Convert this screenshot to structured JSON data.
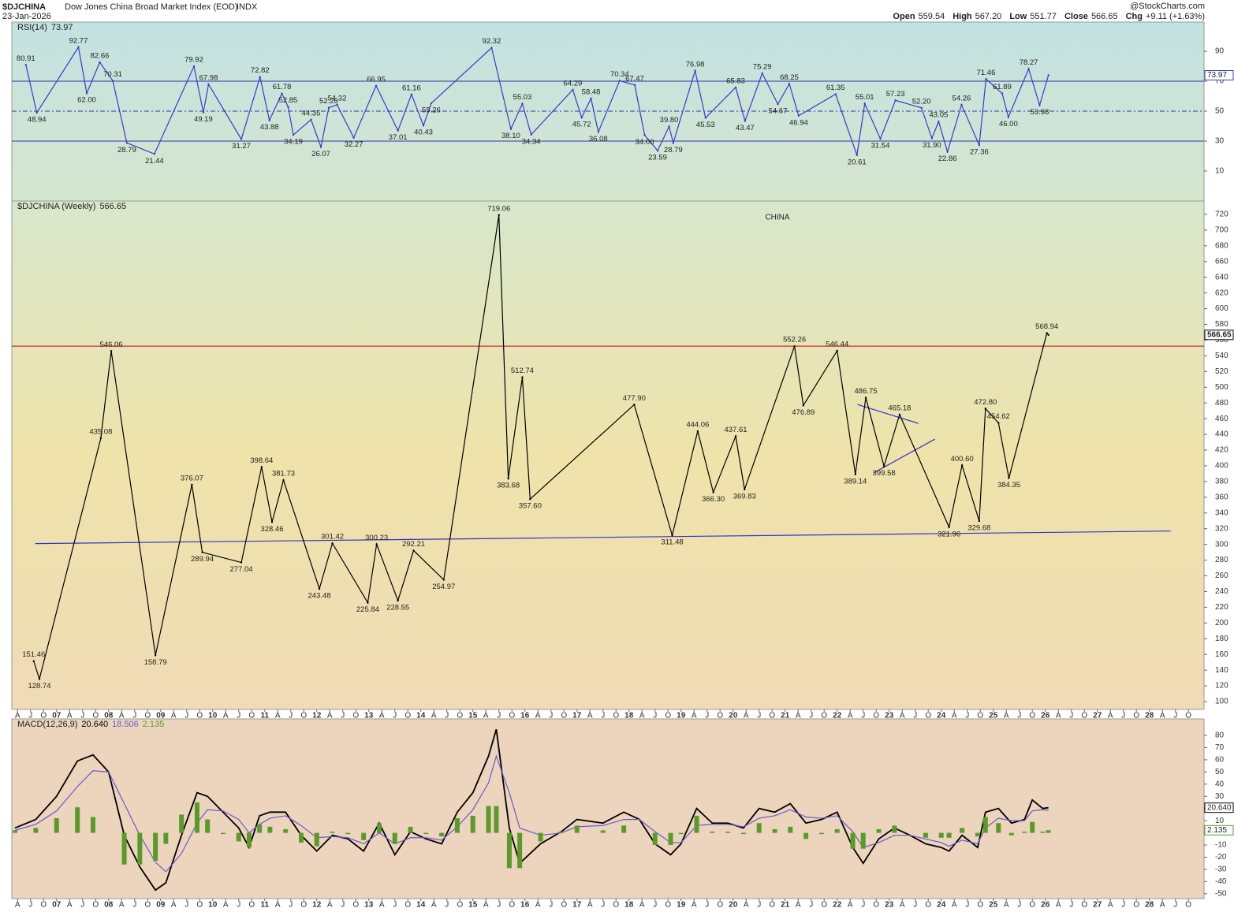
{
  "header": {
    "symbol": "$DJCHINA",
    "name": "Dow Jones China Broad Market Index (EOD)",
    "exchange": "INDX",
    "date": "23-Jan-2026",
    "credit": "@StockCharts.com",
    "quote": [
      {
        "label": "Open",
        "value": "559.54"
      },
      {
        "label": "High",
        "value": "567.20"
      },
      {
        "label": "Low",
        "value": "551.77"
      },
      {
        "label": "Close",
        "value": "566.65"
      },
      {
        "label": "Chg",
        "value": "+9.11 (+1.63%)"
      }
    ]
  },
  "chart_data": [
    {
      "type": "line",
      "title": "RSI(14)",
      "color": "#3a3ac8",
      "x": [
        2006.41,
        2006.62,
        2007.42,
        2007.58,
        2007.83,
        2008.08,
        2008.35,
        2008.88,
        2009.64,
        2009.82,
        2009.92,
        2010.55,
        2010.91,
        2011.09,
        2011.33,
        2011.45,
        2011.55,
        2011.89,
        2012.08,
        2012.23,
        2012.39,
        2012.71,
        2013.14,
        2013.56,
        2013.82,
        2014.05,
        2014.2,
        2015.36,
        2015.73,
        2015.95,
        2016.12,
        2016.92,
        2017.09,
        2017.27,
        2017.41,
        2017.82,
        2018.11,
        2018.3,
        2018.55,
        2018.77,
        2018.85,
        2019.27,
        2019.47,
        2020.05,
        2020.23,
        2020.56,
        2020.86,
        2021.08,
        2021.26,
        2021.97,
        2022.38,
        2022.53,
        2022.83,
        2023.12,
        2023.62,
        2023.82,
        2023.95,
        2024.12,
        2024.39,
        2024.73,
        2024.86,
        2025.17,
        2025.29,
        2025.68,
        2025.89,
        2026.06
      ],
      "values": [
        80.91,
        48.94,
        92.77,
        62,
        82.66,
        70.31,
        28.79,
        21.44,
        79.92,
        49.19,
        67.98,
        31.27,
        72.82,
        43.88,
        61.78,
        52.85,
        34.19,
        44.35,
        26.07,
        52.26,
        54.32,
        32.27,
        66.95,
        37.01,
        61.16,
        40.43,
        55.26,
        92.32,
        38.1,
        55.03,
        34.34,
        64.29,
        45.72,
        58.48,
        36.08,
        70.34,
        67.47,
        34,
        23.59,
        39.8,
        28.79,
        76.98,
        45.53,
        65.83,
        43.47,
        75.29,
        54.67,
        68.25,
        46.94,
        61.35,
        20.61,
        55.01,
        31.54,
        57.23,
        52.2,
        31.9,
        43.05,
        22.86,
        54.26,
        27.36,
        71.46,
        61.89,
        46,
        78.27,
        53.98,
        73.97
      ],
      "value_labels": [
        "80.91",
        "48.94",
        "92.77",
        "62.00",
        "82.66",
        "70.31",
        "28.79",
        "21.44",
        "79.92",
        "49.19",
        "67.98",
        "31.27",
        "72.82",
        "43.88",
        "61.78",
        "52.85",
        "34.19",
        "44.35",
        "26.07",
        "52.26",
        "54.32",
        "32.27",
        "66.95",
        "37.01",
        "61.16",
        "40.43",
        "55.26",
        "92.32",
        "38.10",
        "55.03",
        "34.34",
        "64.29",
        "45.72",
        "58.48",
        "36.08",
        "70.34",
        "67.47",
        "34.00",
        "23.59",
        "39.80",
        "28.79",
        "76.98",
        "45.53",
        "65.83",
        "43.47",
        "75.29",
        "54.67",
        "68.25",
        "46.94",
        "61.35",
        "20.61",
        "55.01",
        "31.54",
        "57.23",
        "52.20",
        "31.90",
        "43.05",
        "22.86",
        "54.26",
        "27.36",
        "71.46",
        "61.89",
        "46.00",
        "78.27",
        "53.98",
        "73.97"
      ],
      "xlim": [
        2006.14,
        2029.05
      ],
      "ylim": [
        -10,
        109.5
      ],
      "yticks": [
        10,
        30,
        50,
        70,
        90
      ],
      "hlines": [
        {
          "value": 70,
          "color": "#3333aa"
        },
        {
          "value": 50,
          "color": "#3333aa",
          "dashed": true
        },
        {
          "value": 30,
          "color": "#3333aa"
        }
      ]
    },
    {
      "type": "line",
      "title": "$DJCHINA (Weekly)",
      "annotation": "CHINA",
      "color": "#000000",
      "x": [
        2006.56,
        2006.67,
        2007.85,
        2008.05,
        2008.9,
        2009.6,
        2009.8,
        2010.55,
        2010.94,
        2011.14,
        2011.36,
        2012.05,
        2012.3,
        2012.98,
        2013.15,
        2013.56,
        2013.86,
        2014.44,
        2015.5,
        2015.68,
        2015.95,
        2016.1,
        2018.1,
        2018.83,
        2019.32,
        2019.62,
        2020.05,
        2020.22,
        2021.18,
        2021.35,
        2022.0,
        2022.35,
        2022.55,
        2022.9,
        2023.2,
        2024.15,
        2024.4,
        2024.73,
        2024.85,
        2025.1,
        2025.3,
        2026.03,
        2026.06
      ],
      "values": [
        151.46,
        128.74,
        435.08,
        546.06,
        158.79,
        376.07,
        289.94,
        277.04,
        398.64,
        328.46,
        381.73,
        243.48,
        301.42,
        225.84,
        300.23,
        228.55,
        292.21,
        254.97,
        719.06,
        383.68,
        512.74,
        357.6,
        477.9,
        311.48,
        444.06,
        366.3,
        437.61,
        369.83,
        552.26,
        476.89,
        546.44,
        389.14,
        486.75,
        399.58,
        465.18,
        321.96,
        400.6,
        329.68,
        472.8,
        454.62,
        384.35,
        568.94,
        566.65
      ],
      "value_labels": [
        "151.46",
        "128.74",
        "435.08",
        "546.06",
        "158.79",
        "376.07",
        "289.94",
        "277.04",
        "398.64",
        "328.46",
        "381.73",
        "243.48",
        "301.42",
        "225.84",
        "300.23",
        "228.55",
        "292.21",
        "254.97",
        "719.06",
        "383.68",
        "512.74",
        "357.60",
        "477.90",
        "311.48",
        "444.06",
        "366.30",
        "437.61",
        "369.83",
        "552.26",
        "476.89",
        "546.44",
        "389.14",
        "486.75",
        "399.58",
        "465.18",
        "321.96",
        "400.60",
        "329.68",
        "472.80",
        "454.62",
        "384.35",
        "568.94",
        "566.65"
      ],
      "xlim": [
        2006.14,
        2029.05
      ],
      "ylim": [
        90,
        737
      ],
      "yticks": [
        100,
        120,
        140,
        160,
        180,
        200,
        220,
        240,
        260,
        280,
        300,
        320,
        340,
        360,
        380,
        400,
        420,
        440,
        460,
        480,
        500,
        520,
        540,
        560,
        580,
        600,
        620,
        640,
        660,
        680,
        700,
        720
      ],
      "xticks": [
        {
          "value": 2006.25,
          "label": "A"
        },
        {
          "value": 2006.5,
          "label": "J"
        },
        {
          "value": 2006.75,
          "label": "O"
        },
        {
          "value": 2007,
          "label": "07"
        },
        {
          "value": 2007.25,
          "label": "A"
        },
        {
          "value": 2007.5,
          "label": "J"
        },
        {
          "value": 2007.75,
          "label": "O"
        },
        {
          "value": 2008,
          "label": "08"
        },
        {
          "value": 2008.25,
          "label": "A"
        },
        {
          "value": 2008.5,
          "label": "J"
        },
        {
          "value": 2008.75,
          "label": "O"
        },
        {
          "value": 2009,
          "label": "09"
        },
        {
          "value": 2009.25,
          "label": "A"
        },
        {
          "value": 2009.5,
          "label": "J"
        },
        {
          "value": 2009.75,
          "label": "O"
        },
        {
          "value": 2010,
          "label": "10"
        },
        {
          "value": 2010.25,
          "label": "A"
        },
        {
          "value": 2010.5,
          "label": "J"
        },
        {
          "value": 2010.75,
          "label": "O"
        },
        {
          "value": 2011,
          "label": "11"
        },
        {
          "value": 2011.25,
          "label": "A"
        },
        {
          "value": 2011.5,
          "label": "J"
        },
        {
          "value": 2011.75,
          "label": "O"
        },
        {
          "value": 2012,
          "label": "12"
        },
        {
          "value": 2012.25,
          "label": "A"
        },
        {
          "value": 2012.5,
          "label": "J"
        },
        {
          "value": 2012.75,
          "label": "O"
        },
        {
          "value": 2013,
          "label": "13"
        },
        {
          "value": 2013.25,
          "label": "A"
        },
        {
          "value": 2013.5,
          "label": "J"
        },
        {
          "value": 2013.75,
          "label": "O"
        },
        {
          "value": 2014,
          "label": "14"
        },
        {
          "value": 2014.25,
          "label": "A"
        },
        {
          "value": 2014.5,
          "label": "J"
        },
        {
          "value": 2014.75,
          "label": "O"
        },
        {
          "value": 2015,
          "label": "15"
        },
        {
          "value": 2015.25,
          "label": "A"
        },
        {
          "value": 2015.5,
          "label": "J"
        },
        {
          "value": 2015.75,
          "label": "O"
        },
        {
          "value": 2016,
          "label": "16"
        },
        {
          "value": 2016.25,
          "label": "A"
        },
        {
          "value": 2016.5,
          "label": "J"
        },
        {
          "value": 2016.75,
          "label": "O"
        },
        {
          "value": 2017,
          "label": "17"
        },
        {
          "value": 2017.25,
          "label": "A"
        },
        {
          "value": 2017.5,
          "label": "J"
        },
        {
          "value": 2017.75,
          "label": "O"
        },
        {
          "value": 2018,
          "label": "18"
        },
        {
          "value": 2018.25,
          "label": "A"
        },
        {
          "value": 2018.5,
          "label": "J"
        },
        {
          "value": 2018.75,
          "label": "O"
        },
        {
          "value": 2019,
          "label": "19"
        },
        {
          "value": 2019.25,
          "label": "A"
        },
        {
          "value": 2019.5,
          "label": "J"
        },
        {
          "value": 2019.75,
          "label": "O"
        },
        {
          "value": 2020,
          "label": "20"
        },
        {
          "value": 2020.25,
          "label": "A"
        },
        {
          "value": 2020.5,
          "label": "J"
        },
        {
          "value": 2020.75,
          "label": "O"
        },
        {
          "value": 2021,
          "label": "21"
        },
        {
          "value": 2021.25,
          "label": "A"
        },
        {
          "value": 2021.5,
          "label": "J"
        },
        {
          "value": 2021.75,
          "label": "O"
        },
        {
          "value": 2022,
          "label": "22"
        },
        {
          "value": 2022.25,
          "label": "A"
        },
        {
          "value": 2022.5,
          "label": "J"
        },
        {
          "value": 2022.75,
          "label": "O"
        },
        {
          "value": 2023,
          "label": "23"
        },
        {
          "value": 2023.25,
          "label": "A"
        },
        {
          "value": 2023.5,
          "label": "J"
        },
        {
          "value": 2023.75,
          "label": "O"
        },
        {
          "value": 2024,
          "label": "24"
        },
        {
          "value": 2024.25,
          "label": "A"
        },
        {
          "value": 2024.5,
          "label": "J"
        },
        {
          "value": 2024.75,
          "label": "O"
        },
        {
          "value": 2025,
          "label": "25"
        },
        {
          "value": 2025.25,
          "label": "A"
        },
        {
          "value": 2025.5,
          "label": "J"
        },
        {
          "value": 2025.75,
          "label": "O"
        },
        {
          "value": 2026,
          "label": "26"
        },
        {
          "value": 2026.25,
          "label": "A"
        },
        {
          "value": 2026.5,
          "label": "J"
        },
        {
          "value": 2026.75,
          "label": "O"
        },
        {
          "value": 2027,
          "label": "27"
        },
        {
          "value": 2027.25,
          "label": "A"
        },
        {
          "value": 2027.5,
          "label": "J"
        },
        {
          "value": 2027.75,
          "label": "O"
        },
        {
          "value": 2028,
          "label": "28"
        },
        {
          "value": 2028.25,
          "label": "A"
        },
        {
          "value": 2028.5,
          "label": "J"
        },
        {
          "value": 2028.75,
          "label": "O"
        }
      ],
      "hlines": [
        {
          "value": 552.26,
          "color": "#cc0000"
        }
      ],
      "trendlines": [
        {
          "x": [
            2006.59,
            2028.41
          ],
          "values": [
            301,
            317
          ]
        },
        {
          "x": [
            2022.39,
            2023.56
          ],
          "values": [
            478,
            454
          ]
        },
        {
          "x": [
            2022.7,
            2023.88
          ],
          "values": [
            391,
            434
          ]
        }
      ],
      "trendline_color": "#3333cc"
    },
    {
      "type": "macd",
      "title": "MACD(12,26,9)",
      "x": [
        2006.2,
        2006.6,
        2007.0,
        2007.4,
        2007.7,
        2008.0,
        2008.3,
        2008.6,
        2008.9,
        2009.1,
        2009.4,
        2009.7,
        2009.9,
        2010.2,
        2010.5,
        2010.7,
        2010.9,
        2011.1,
        2011.4,
        2011.7,
        2012.0,
        2012.3,
        2012.6,
        2012.9,
        2013.2,
        2013.5,
        2013.8,
        2014.1,
        2014.4,
        2014.7,
        2015.0,
        2015.3,
        2015.45,
        2015.7,
        2015.9,
        2016.3,
        2016.7,
        2017.0,
        2017.5,
        2017.9,
        2018.2,
        2018.5,
        2018.8,
        2019.0,
        2019.3,
        2019.6,
        2019.9,
        2020.2,
        2020.5,
        2020.8,
        2021.1,
        2021.4,
        2021.7,
        2022.0,
        2022.3,
        2022.5,
        2022.8,
        2023.1,
        2023.4,
        2023.7,
        2024.0,
        2024.15,
        2024.4,
        2024.7,
        2024.85,
        2025.1,
        2025.35,
        2025.6,
        2025.75,
        2025.95,
        2026.06
      ],
      "series": [
        {
          "color": "#000000",
          "tag": true,
          "readout_label": "20.640",
          "values": [
            4,
            11,
            30,
            59,
            64,
            50,
            -2,
            -28,
            -47,
            -41,
            -2,
            33,
            30,
            17,
            4,
            -12,
            14,
            17,
            17,
            -2,
            -15,
            -2,
            -5,
            -15,
            8,
            -18,
            1,
            -5,
            -9,
            17,
            33,
            63,
            85,
            4,
            -25,
            -9,
            1,
            11,
            8,
            17,
            11,
            -9,
            -18,
            -9,
            20,
            8,
            8,
            4,
            20,
            17,
            24,
            8,
            11,
            17,
            -12,
            -25,
            -5,
            4,
            -2,
            -9,
            -12,
            -15,
            -2,
            -12,
            17,
            20,
            8,
            11,
            27,
            20,
            20.64
          ]
        },
        {
          "color": "#6a5acd",
          "readout_label": "18.506",
          "values": [
            2,
            7,
            18,
            38,
            51,
            50,
            24,
            -2,
            -24,
            -32,
            -17,
            8,
            19,
            18,
            11,
            0,
            7,
            12,
            14,
            6,
            -4,
            -3,
            -4,
            -9,
            0,
            -9,
            -4,
            -4,
            -6,
            5,
            19,
            41,
            63,
            33,
            4,
            -2,
            0,
            5,
            6,
            11,
            11,
            1,
            -8,
            -8,
            6,
            7,
            7,
            5,
            12,
            14,
            19,
            13,
            12,
            14,
            1,
            -12,
            -8,
            -2,
            -2,
            -5,
            -8,
            -11,
            -6,
            -9,
            4,
            12,
            10,
            10,
            18,
            19,
            18.506
          ]
        },
        {
          "color": "#5a9a2a",
          "style": "histogram",
          "tag": true,
          "readout_label": "2.135",
          "values": [
            2,
            4,
            12,
            21,
            13,
            0,
            -26,
            -26,
            -23,
            -9,
            15,
            25,
            11,
            -1,
            -7,
            -12,
            7,
            5,
            3,
            -8,
            -11,
            1,
            -1,
            -6,
            8,
            -9,
            5,
            -1,
            -3,
            12,
            14,
            22,
            22,
            -29,
            -29,
            -7,
            1,
            6,
            2,
            6,
            0,
            -10,
            -10,
            -1,
            14,
            1,
            1,
            -1,
            8,
            3,
            5,
            -5,
            -1,
            3,
            -13,
            -13,
            3,
            6,
            0,
            -4,
            -4,
            -4,
            4,
            -3,
            13,
            8,
            -2,
            1,
            9,
            1,
            2.135
          ]
        }
      ],
      "xlim": [
        2006.14,
        2029.05
      ],
      "ylim": [
        -54,
        93.6
      ],
      "yticks": [
        -50,
        -40,
        -30,
        -20,
        -10,
        0,
        10,
        20,
        30,
        40,
        50,
        60,
        70,
        80
      ]
    }
  ]
}
